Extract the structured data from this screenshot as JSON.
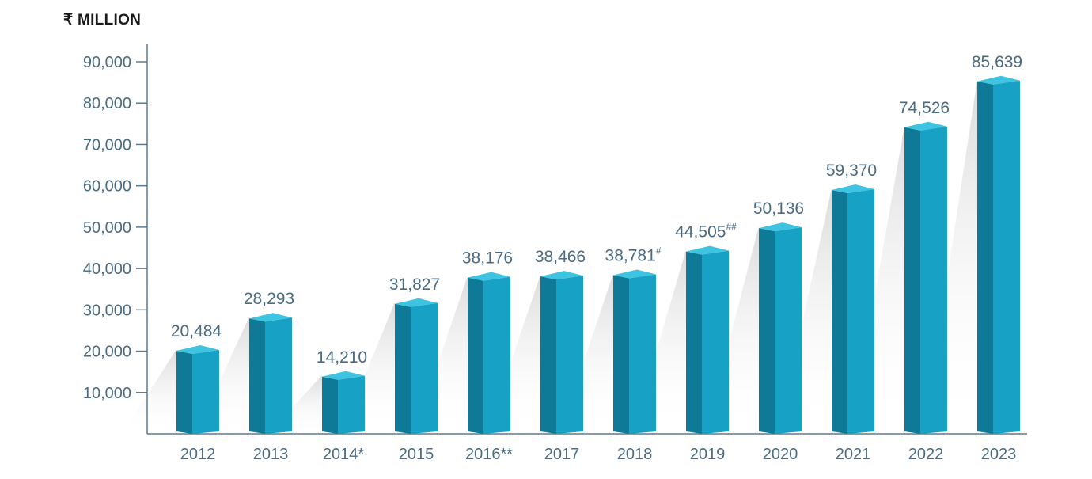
{
  "chart_data": {
    "type": "bar",
    "unit_label": "₹ MILLION",
    "categories": [
      "2012",
      "2013",
      "2014*",
      "2015",
      "2016**",
      "2017",
      "2018",
      "2019",
      "2020",
      "2021",
      "2022",
      "2023"
    ],
    "values": [
      20484,
      28293,
      14210,
      31827,
      38176,
      38466,
      38781,
      44505,
      50136,
      59370,
      74526,
      85639
    ],
    "value_labels": [
      "20,484",
      "28,293",
      "14,210",
      "31,827",
      "38,176",
      "38,466",
      "38,781",
      "44,505",
      "50,136",
      "59,370",
      "74,526",
      "85,639"
    ],
    "value_label_marks": [
      "",
      "",
      "",
      "",
      "",
      "",
      "#",
      "##",
      "",
      "",
      "",
      ""
    ],
    "y_ticks": [
      10000,
      20000,
      30000,
      40000,
      50000,
      60000,
      70000,
      80000,
      90000
    ],
    "y_tick_labels": [
      "10,000",
      "20,000",
      "30,000",
      "40,000",
      "50,000",
      "60,000",
      "70,000",
      "80,000",
      "90,000"
    ],
    "ylim": [
      0,
      90000
    ],
    "colors": {
      "bar_front": "#17a1c4",
      "bar_side": "#0f7a98",
      "bar_top": "#3ec3e0",
      "axis": "#5a7a90",
      "tick_text": "#4a6b82",
      "value_text": "#4a6b82",
      "shadow": "#d6d6d6"
    }
  }
}
